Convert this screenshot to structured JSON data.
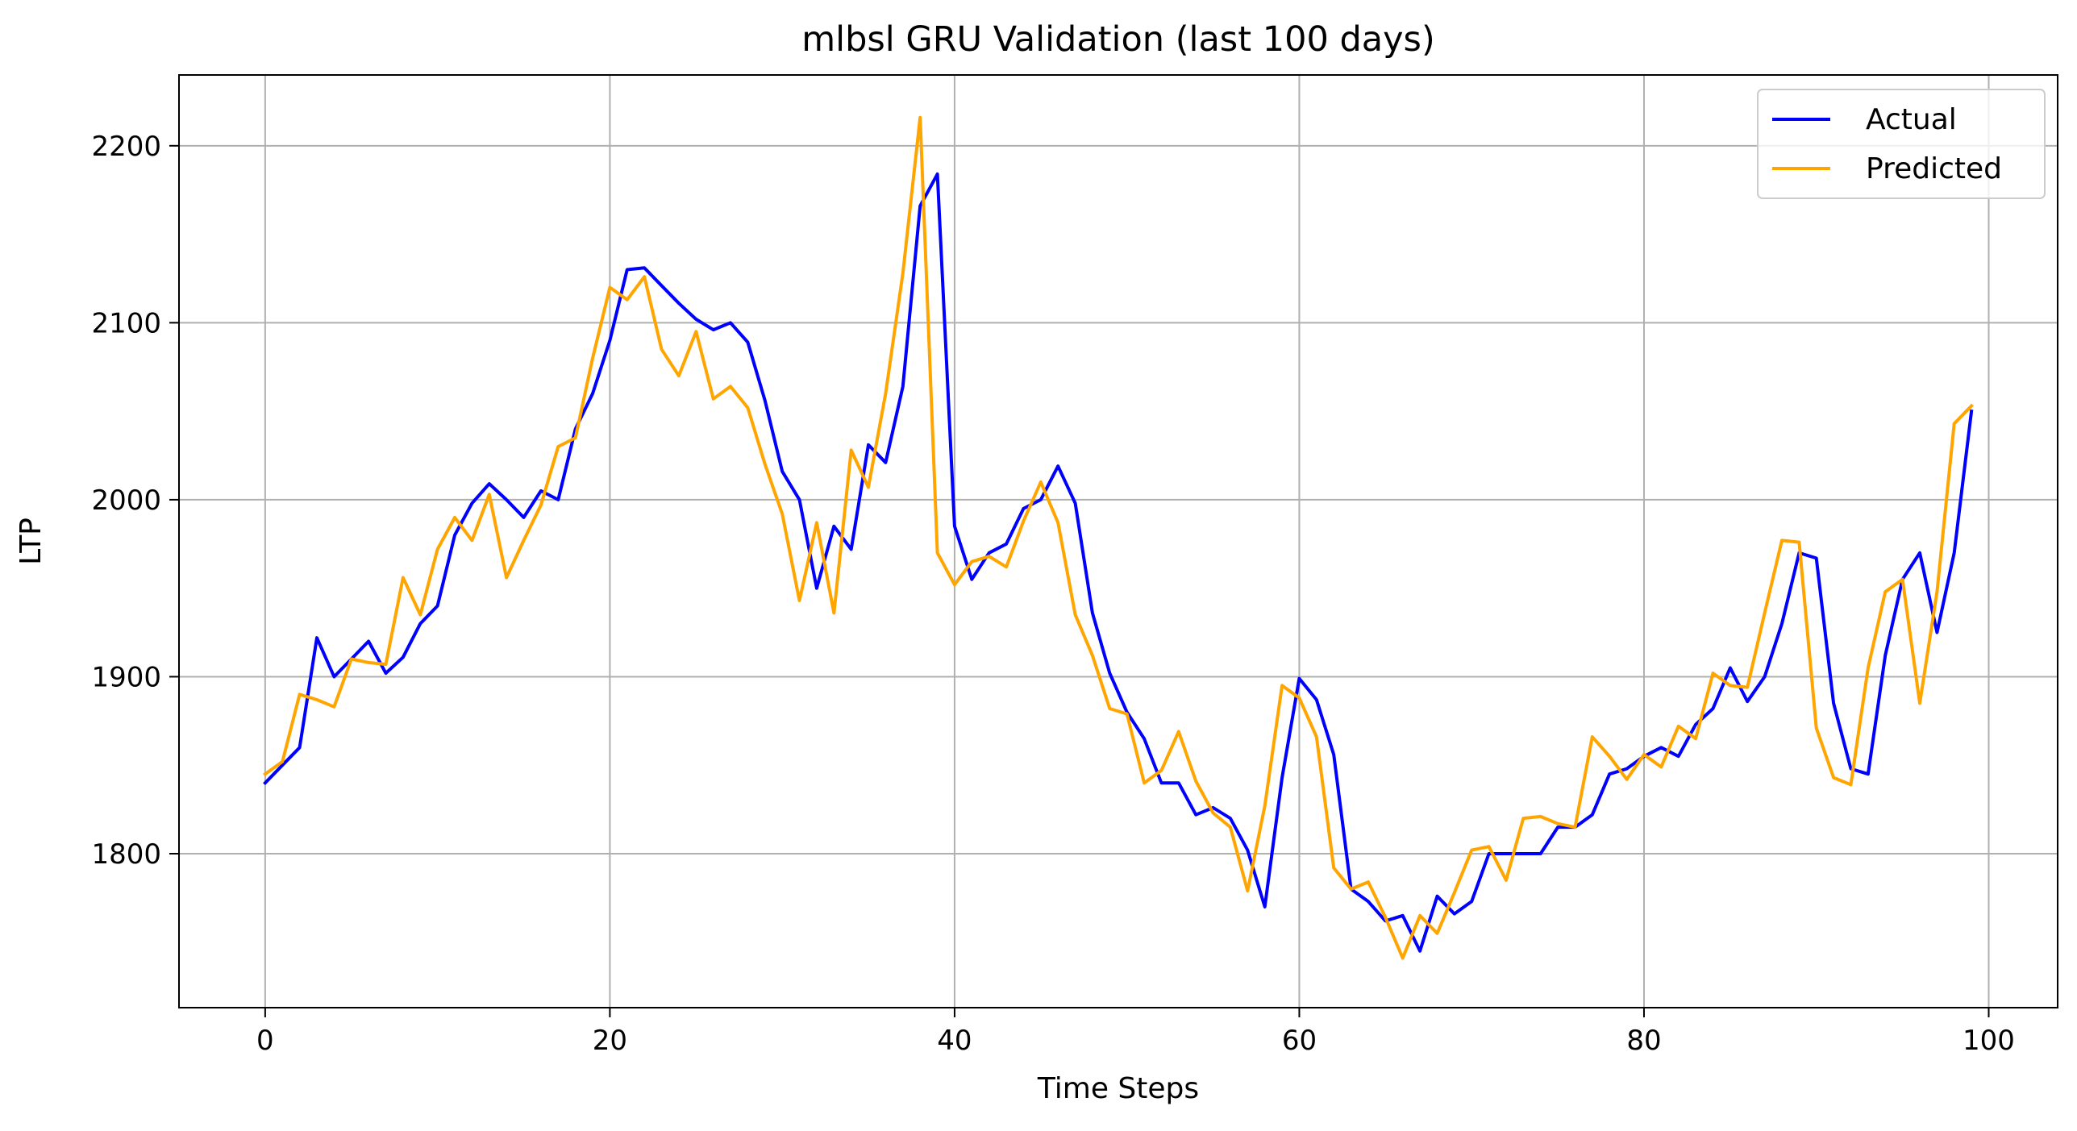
{
  "chart_data": {
    "type": "line",
    "title": "mlbsl GRU Validation (last 100 days)",
    "xlabel": "Time Steps",
    "ylabel": "LTP",
    "xlim": [
      -5,
      104
    ],
    "ylim": [
      1713,
      2240
    ],
    "xticks": [
      0,
      20,
      40,
      60,
      80,
      100
    ],
    "yticks": [
      1800,
      1900,
      2000,
      2100,
      2200
    ],
    "grid": true,
    "legend_position": "top-right",
    "series": [
      {
        "name": "Actual",
        "color": "#0000ff",
        "values": [
          1840,
          1850,
          1860,
          1922,
          1900,
          1910,
          1920,
          1902,
          1911,
          1930,
          1940,
          1980,
          1998,
          2009,
          2000,
          1990,
          2005,
          2000,
          2040,
          2060,
          2090,
          2130,
          2131,
          2121,
          2111,
          2102,
          2096,
          2100,
          2089,
          2056,
          2016,
          2000,
          1950,
          1985,
          1972,
          2031,
          2021,
          2064,
          2166,
          2184,
          1985,
          1955,
          1970,
          1975,
          1995,
          2000,
          2019,
          1998,
          1936,
          1902,
          1880,
          1865,
          1840,
          1840,
          1822,
          1826,
          1820,
          1802,
          1770,
          1843,
          1899,
          1887,
          1856,
          1780,
          1773,
          1762,
          1765,
          1745,
          1776,
          1766,
          1773,
          1800,
          1800,
          1800,
          1800,
          1815,
          1815,
          1822,
          1845,
          1848,
          1855,
          1860,
          1855,
          1873,
          1882,
          1905,
          1886,
          1900,
          1930,
          1970,
          1967,
          1885,
          1848,
          1845,
          1912,
          1955,
          1970,
          1925,
          1970,
          2050
        ]
      },
      {
        "name": "Predicted",
        "color": "#ffa500",
        "values": [
          1845,
          1852,
          1890,
          1887,
          1883,
          1910,
          1908,
          1907,
          1956,
          1935,
          1972,
          1990,
          1977,
          2003,
          1956,
          1977,
          1997,
          2030,
          2035,
          2080,
          2120,
          2113,
          2126,
          2085,
          2070,
          2095,
          2057,
          2064,
          2052,
          2020,
          1992,
          1943,
          1987,
          1936,
          2028,
          2007,
          2060,
          2128,
          2216,
          1970,
          1952,
          1965,
          1968,
          1962,
          1988,
          2010,
          1987,
          1935,
          1912,
          1882,
          1879,
          1840,
          1847,
          1869,
          1841,
          1823,
          1815,
          1779,
          1827,
          1895,
          1888,
          1866,
          1792,
          1780,
          1784,
          1764,
          1741,
          1765,
          1755,
          1778,
          1802,
          1804,
          1785,
          1820,
          1821,
          1817,
          1815,
          1866,
          1855,
          1842,
          1856,
          1849,
          1872,
          1865,
          1902,
          1895,
          1894,
          1936,
          1977,
          1976,
          1871,
          1843,
          1839,
          1905,
          1948,
          1955,
          1885,
          1948,
          2043,
          2053
        ]
      }
    ]
  }
}
